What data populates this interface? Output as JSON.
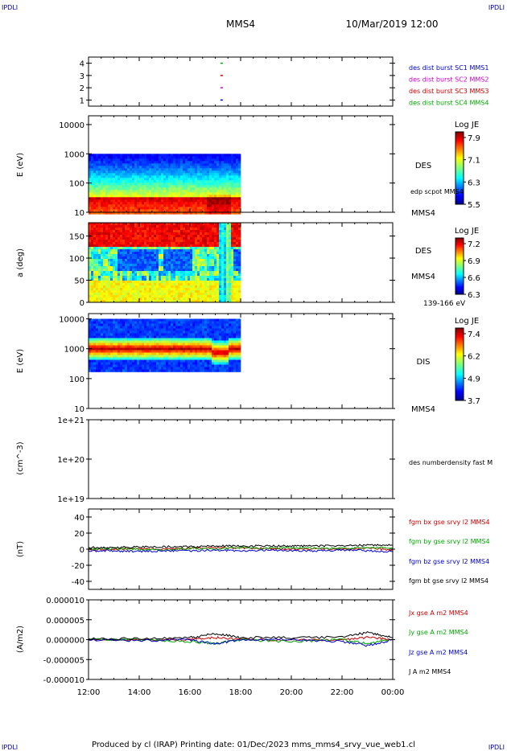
{
  "corners": {
    "top_left": "IPDLI",
    "top_right": "IPDLI",
    "bottom_left": "IPDLI",
    "bottom_right": "IPDLI"
  },
  "header": {
    "spacecraft": "MMS4",
    "datetime": "10/Mar/2019 12:00"
  },
  "footer": {
    "text": "Produced by cl (IRAP)   Printing date: 01/Dec/2023   mms_mms4_srvy_vue_web1.cl"
  },
  "time_axis": {
    "ticks": [
      "12:00",
      "14:00",
      "16:00",
      "18:00",
      "20:00",
      "22:00",
      "00:00"
    ],
    "range_hours": [
      12,
      24
    ]
  },
  "colors": {
    "mms1": "#0000cc",
    "mms2": "#cc00cc",
    "mms3": "#cc0000",
    "mms4": "#00aa00",
    "bx": "#cc0000",
    "by": "#00aa00",
    "bz": "#0000cc",
    "bt": "#000000"
  },
  "chart_data": [
    {
      "type": "scatter",
      "panel": "burst-availability",
      "ylim": [
        0.5,
        4.5
      ],
      "yticks": [
        "4",
        "3",
        "2",
        "1"
      ],
      "legend": [
        "des dist burst SC1 MMS1",
        "des dist burst SC2 MMS2",
        "des dist burst SC3 MMS3",
        "des dist burst SC4 MMS4"
      ],
      "series": [
        {
          "name": "des dist burst SC4 MMS4",
          "x": [
            17.25
          ],
          "y": [
            4
          ]
        },
        {
          "name": "des dist burst SC3 MMS3",
          "x": [
            17.25
          ],
          "y": [
            3
          ]
        },
        {
          "name": "des dist burst SC2 MMS2",
          "x": [
            17.25
          ],
          "y": [
            2
          ]
        },
        {
          "name": "des dist burst SC1 MMS1",
          "x": [
            17.25
          ],
          "y": [
            1
          ]
        }
      ]
    },
    {
      "type": "heatmap",
      "panel": "des-energy",
      "ylabel": "E (eV)",
      "yscale": "log",
      "ylim": [
        10,
        20000
      ],
      "yticks": [
        "10000",
        "1000",
        "100",
        "10"
      ],
      "data_x_range": [
        12,
        18
      ],
      "data_y_range": [
        10,
        1000
      ],
      "colorbar": {
        "label": "Log JE",
        "ticks": [
          "7.9",
          "7.1",
          "6.3",
          "5.5"
        ],
        "range": [
          5.5,
          7.9
        ]
      },
      "right_labels": [
        "DES",
        "edp scpot MMS4",
        "MMS4"
      ]
    },
    {
      "type": "heatmap",
      "panel": "des-pitch-angle",
      "ylabel": "a (deg)",
      "ylim": [
        0,
        180
      ],
      "yticks": [
        "150",
        "100",
        "50",
        "0"
      ],
      "data_x_range": [
        12,
        18
      ],
      "colorbar": {
        "label": "Log JE",
        "ticks": [
          "7.2",
          "6.9",
          "6.6",
          "6.3"
        ],
        "range": [
          6.3,
          7.2
        ]
      },
      "right_labels": [
        "DES",
        "MMS4",
        "139-166 eV"
      ]
    },
    {
      "type": "heatmap",
      "panel": "dis-energy",
      "ylabel": "E (eV)",
      "yscale": "log",
      "ylim": [
        10,
        15000
      ],
      "yticks": [
        "10000",
        "1000",
        "100",
        "10"
      ],
      "data_x_range": [
        12,
        18
      ],
      "data_y_range": [
        200,
        10000
      ],
      "colorbar": {
        "label": "Log JE",
        "ticks": [
          "7.4",
          "6.2",
          "4.9",
          "3.7"
        ],
        "range": [
          3.7,
          7.4
        ]
      },
      "right_labels": [
        "DIS",
        "MMS4"
      ]
    },
    {
      "type": "line",
      "panel": "density",
      "ylabel": "(cm^-3)",
      "yscale": "log",
      "ylim": [
        1e+19,
        1e+21
      ],
      "yticks": [
        "1e+21",
        "1e+20",
        "1e+19"
      ],
      "right_labels": [
        "des numberdensity fast M"
      ],
      "series": []
    },
    {
      "type": "line",
      "panel": "fgm",
      "ylabel": "(nT)",
      "ylim": [
        -50,
        50
      ],
      "yticks": [
        "40",
        "20",
        "0",
        "-20",
        "-40"
      ],
      "legend": [
        "fgm bx gse srvy l2 MMS4",
        "fgm by gse srvy l2 MMS4",
        "fgm bz gse srvy l2 MMS4",
        "fgm bt gse srvy l2 MMS4"
      ],
      "series": [
        {
          "name": "fgm bx gse srvy l2 MMS4",
          "x": [
            12,
            13,
            14,
            15,
            16,
            17,
            18,
            19,
            20,
            21,
            22,
            23,
            24
          ],
          "y": [
            -1,
            0,
            1,
            0,
            1,
            2,
            1,
            1,
            0,
            1,
            0,
            1,
            -1
          ]
        },
        {
          "name": "fgm by gse srvy l2 MMS4",
          "x": [
            12,
            13,
            14,
            15,
            16,
            17,
            18,
            19,
            20,
            21,
            22,
            23,
            24
          ],
          "y": [
            0,
            1,
            0,
            -1,
            1,
            0,
            2,
            1,
            2,
            1,
            1,
            2,
            1
          ]
        },
        {
          "name": "fgm bz gse srvy l2 MMS4",
          "x": [
            12,
            13,
            14,
            15,
            16,
            17,
            18,
            19,
            20,
            21,
            22,
            23,
            24
          ],
          "y": [
            -2,
            -2,
            -3,
            -2,
            -2,
            -1,
            -2,
            -1,
            -2,
            -2,
            -1,
            -2,
            -3
          ]
        },
        {
          "name": "fgm bt gse srvy l2 MMS4",
          "x": [
            12,
            13,
            14,
            15,
            16,
            17,
            18,
            19,
            20,
            21,
            22,
            23,
            24
          ],
          "y": [
            2,
            2,
            3,
            3,
            3,
            4,
            4,
            4,
            4,
            4,
            4,
            5,
            5
          ]
        }
      ]
    },
    {
      "type": "line",
      "panel": "current",
      "ylabel": "(A/m2)",
      "ylim": [
        -1e-05,
        1e-05
      ],
      "yticks": [
        "0.000010",
        "0.000005",
        "0.000000",
        "-0.000005",
        "-0.000010"
      ],
      "legend": [
        "Jx gse A m2 MMS4",
        "Jy gse A m2 MMS4",
        "Jz gse A m2 MMS4",
        "J A m2 MMS4"
      ],
      "series": [
        {
          "name": "Jx gse A m2 MMS4",
          "x": [
            12,
            14,
            16,
            17,
            18,
            20,
            22,
            23,
            24
          ],
          "y": [
            0,
            0,
            0,
            5e-07,
            0,
            0,
            0,
            5e-07,
            0
          ]
        },
        {
          "name": "Jy gse A m2 MMS4",
          "x": [
            12,
            14,
            16,
            17,
            18,
            20,
            22,
            23,
            24
          ],
          "y": [
            0,
            0,
            -5e-07,
            -1e-06,
            0,
            -5e-07,
            0,
            -1e-06,
            0
          ]
        },
        {
          "name": "Jz gse A m2 MMS4",
          "x": [
            12,
            14,
            16,
            17,
            18,
            20,
            22,
            23,
            24
          ],
          "y": [
            0,
            -3e-07,
            0,
            -1e-06,
            0,
            0,
            -5e-07,
            -1.5e-06,
            0
          ]
        },
        {
          "name": "J A m2 MMS4",
          "x": [
            12,
            14,
            16,
            17,
            18,
            20,
            22,
            23,
            24
          ],
          "y": [
            2e-07,
            3e-07,
            5e-07,
            1.5e-06,
            5e-07,
            5e-07,
            6e-07,
            1.8e-06,
            5e-07
          ]
        }
      ]
    }
  ]
}
